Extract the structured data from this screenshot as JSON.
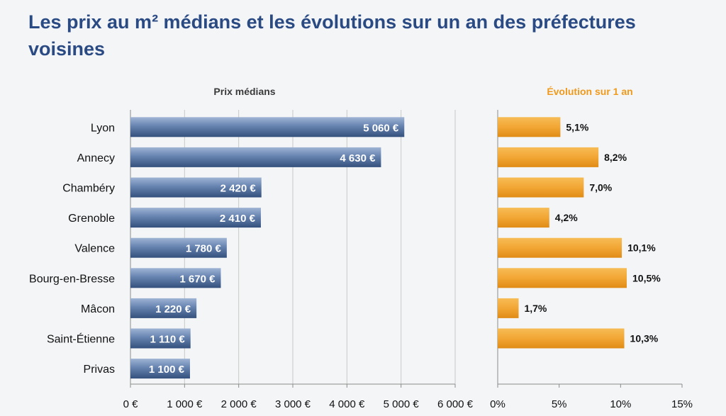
{
  "title": "Les prix au m² médians et les évolutions sur un an des préfectures voisines",
  "chart_data": [
    {
      "type": "bar",
      "orientation": "horizontal",
      "title": "Prix médians",
      "categories": [
        "Lyon",
        "Annecy",
        "Chambéry",
        "Grenoble",
        "Valence",
        "Bourg-en-Bresse",
        "Mâcon",
        "Saint-Étienne",
        "Privas"
      ],
      "values": [
        5060,
        4630,
        2420,
        2410,
        1780,
        1670,
        1220,
        1110,
        1100
      ],
      "value_labels": [
        "5 060 €",
        "4 630 €",
        "2 420 €",
        "2 410 €",
        "1 780 €",
        "1 670 €",
        "1 220 €",
        "1 110 €",
        "1 100 €"
      ],
      "xlim": [
        0,
        6000
      ],
      "xticks": [
        0,
        1000,
        2000,
        3000,
        4000,
        5000,
        6000
      ],
      "xtick_labels": [
        "0 €",
        "1 000 €",
        "2 000 €",
        "3 000 €",
        "4 000 €",
        "5 000 €",
        "6 000 €"
      ],
      "grid": true,
      "color": "#5f7ca8"
    },
    {
      "type": "bar",
      "orientation": "horizontal",
      "title": "Évolution sur 1 an",
      "categories": [
        "Lyon",
        "Annecy",
        "Chambéry",
        "Grenoble",
        "Valence",
        "Bourg-en-Bresse",
        "Mâcon",
        "Saint-Étienne",
        "Privas"
      ],
      "values": [
        5.1,
        8.2,
        7.0,
        4.2,
        10.1,
        10.5,
        1.7,
        10.3,
        null
      ],
      "value_labels": [
        "5,1%",
        "8,2%",
        "7,0%",
        "4,2%",
        "10,1%",
        "10,5%",
        "1,7%",
        "10,3%",
        ""
      ],
      "xlim": [
        0,
        15
      ],
      "xticks": [
        0,
        5,
        10,
        15
      ],
      "xtick_labels": [
        "0%",
        "5%",
        "10%",
        "15%"
      ],
      "grid": false,
      "color": "#f2a634"
    }
  ],
  "colors": {
    "title": "#2a4a84",
    "price_title": "#3a3a3a",
    "evolution_title": "#ef9a1c"
  }
}
